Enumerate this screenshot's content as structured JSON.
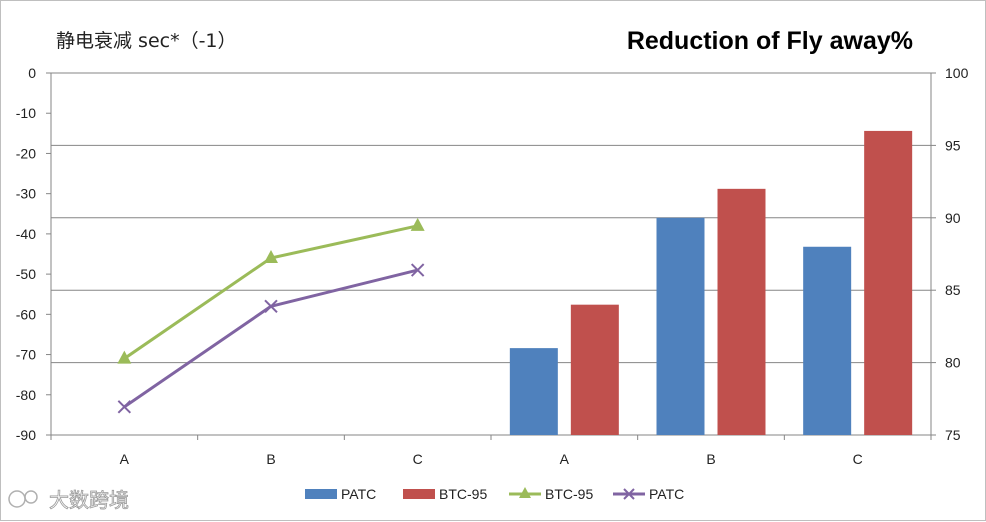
{
  "watermark": "大数跨境",
  "chart_data": {
    "title_left": "静电衰减 sec*（-1）",
    "title_right": "Reduction of Fly away%",
    "colors": {
      "patc_bar": "#4f81bd",
      "btc95_bar": "#c0504d",
      "btc95_line": "#9bbb59",
      "patc_line": "#8064a2"
    },
    "line_chart": {
      "type": "line",
      "categories": [
        "A",
        "B",
        "C"
      ],
      "ylim": [
        -90,
        0
      ],
      "yticks": [
        0,
        -10,
        -20,
        -30,
        -40,
        -50,
        -60,
        -70,
        -80,
        -90
      ],
      "series": [
        {
          "name": "BTC-95",
          "marker": "triangle",
          "values": [
            -71,
            -46,
            -38
          ]
        },
        {
          "name": "PATC",
          "marker": "x",
          "values": [
            -83,
            -58,
            -49
          ]
        }
      ]
    },
    "bar_chart": {
      "type": "bar",
      "categories": [
        "A",
        "B",
        "C"
      ],
      "ylim": [
        75,
        100
      ],
      "yticks": [
        100,
        95,
        90,
        85,
        80,
        75
      ],
      "series": [
        {
          "name": "PATC",
          "values": [
            81,
            90,
            88
          ]
        },
        {
          "name": "BTC-95",
          "values": [
            84,
            92,
            96
          ]
        }
      ]
    },
    "legend": [
      {
        "name": "PATC",
        "kind": "bar",
        "color_key": "patc_bar"
      },
      {
        "name": "BTC-95",
        "kind": "bar",
        "color_key": "btc95_bar"
      },
      {
        "name": "BTC-95",
        "kind": "line-triangle",
        "color_key": "btc95_line"
      },
      {
        "name": "PATC",
        "kind": "line-x",
        "color_key": "patc_line"
      }
    ]
  }
}
